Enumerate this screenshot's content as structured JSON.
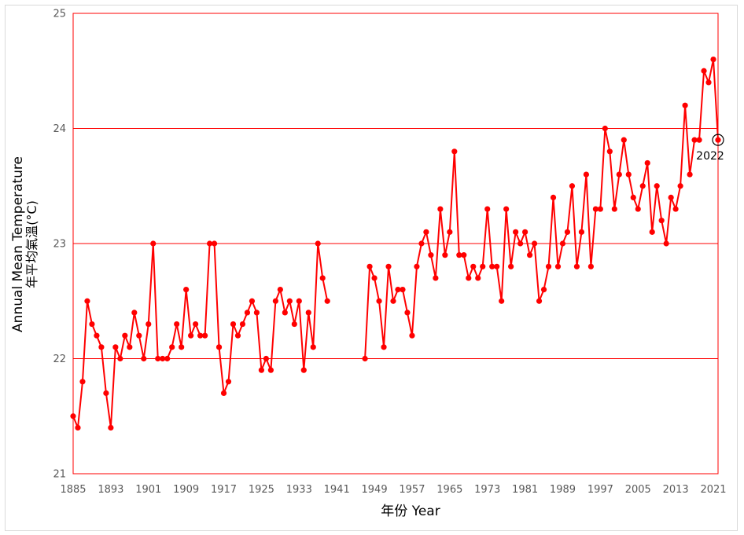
{
  "chart_data": {
    "type": "line",
    "xlabel": "年份 Year",
    "ylabel_line1": "Annual Mean Temperature",
    "ylabel_line2": "年平均氣溫(°C)",
    "ylim": [
      21,
      25
    ],
    "y_ticks": [
      21,
      22,
      23,
      24,
      25
    ],
    "xlim": [
      1885,
      2022
    ],
    "x_ticks": [
      1885,
      1893,
      1901,
      1909,
      1917,
      1925,
      1933,
      1941,
      1949,
      1957,
      1965,
      1973,
      1981,
      1989,
      1997,
      2005,
      2013,
      2021
    ],
    "grid": "horizontal",
    "line_color": "#ff0000",
    "plot_border_color": "#ff0000",
    "highlight": {
      "x": 2022,
      "y": 23.9,
      "label": "2022"
    },
    "series": [
      {
        "x": [
          1885,
          1886,
          1887,
          1888,
          1889,
          1890,
          1891,
          1892,
          1893,
          1894,
          1895,
          1896,
          1897,
          1898,
          1899,
          1900,
          1901,
          1902,
          1903,
          1904,
          1905,
          1906,
          1907,
          1908,
          1909,
          1910,
          1911,
          1912,
          1913,
          1914,
          1915,
          1916,
          1917,
          1918,
          1919,
          1920,
          1921,
          1922,
          1923,
          1924,
          1925,
          1926,
          1927,
          1928,
          1929,
          1930,
          1931,
          1932,
          1933,
          1934,
          1935,
          1936,
          1937,
          1938,
          1939,
          1940,
          1941,
          1942,
          1943,
          1944,
          1945,
          1946,
          1947,
          1948,
          1949,
          1950,
          1951,
          1952,
          1953,
          1954,
          1955,
          1956,
          1957,
          1958,
          1959,
          1960,
          1961,
          1962,
          1963,
          1964,
          1965,
          1966,
          1967,
          1968,
          1969,
          1970,
          1971,
          1972,
          1973,
          1974,
          1975,
          1976,
          1977,
          1978,
          1979,
          1980,
          1981,
          1982,
          1983,
          1984,
          1985,
          1986,
          1987,
          1988,
          1989,
          1990,
          1991,
          1992,
          1993,
          1994,
          1995,
          1996,
          1997,
          1998,
          1999,
          2000,
          2001,
          2002,
          2003,
          2004,
          2005,
          2006,
          2007,
          2008,
          2009,
          2010,
          2011,
          2012,
          2013,
          2014,
          2015,
          2016,
          2017,
          2018,
          2019,
          2020,
          2021,
          2022
        ],
        "y": [
          21.5,
          21.4,
          21.8,
          22.5,
          22.3,
          22.2,
          22.1,
          21.7,
          21.4,
          22.1,
          22.0,
          22.2,
          22.1,
          22.4,
          22.2,
          22.0,
          22.3,
          23.0,
          22.0,
          22.0,
          22.0,
          22.1,
          22.3,
          22.1,
          22.6,
          22.2,
          22.3,
          22.2,
          22.2,
          23.0,
          23.0,
          22.1,
          21.7,
          21.8,
          22.3,
          22.2,
          22.3,
          22.4,
          22.5,
          22.4,
          21.9,
          22.0,
          21.9,
          22.5,
          22.6,
          22.4,
          22.5,
          22.3,
          22.5,
          21.9,
          22.4,
          22.1,
          23.0,
          22.7,
          22.5,
          null,
          null,
          null,
          null,
          null,
          null,
          null,
          22.0,
          22.8,
          22.7,
          22.5,
          22.1,
          22.8,
          22.5,
          22.6,
          22.6,
          22.4,
          22.2,
          22.8,
          23.0,
          23.1,
          22.9,
          22.7,
          23.3,
          22.9,
          23.1,
          23.8,
          22.9,
          22.9,
          22.7,
          22.8,
          22.7,
          22.8,
          23.3,
          22.8,
          22.8,
          22.5,
          23.3,
          22.8,
          23.1,
          23.0,
          23.1,
          22.9,
          23.0,
          22.5,
          22.6,
          22.8,
          23.4,
          22.8,
          23.0,
          23.1,
          23.5,
          22.8,
          23.1,
          23.6,
          22.8,
          23.3,
          23.3,
          24.0,
          23.8,
          23.3,
          23.6,
          23.9,
          23.6,
          23.4,
          23.3,
          23.5,
          23.7,
          23.1,
          23.5,
          23.2,
          23.0,
          23.4,
          23.3,
          23.5,
          24.2,
          23.6,
          23.9,
          23.9,
          24.5,
          24.4,
          24.6,
          23.9
        ]
      }
    ]
  }
}
